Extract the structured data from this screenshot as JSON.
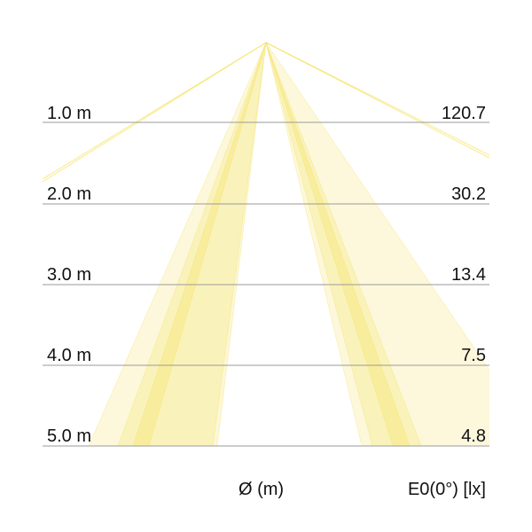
{
  "colors": {
    "beam": "#f5e15a",
    "line": "#9a9a9a"
  },
  "rows": [
    {
      "distance": "1.0 m",
      "lux": "120.7"
    },
    {
      "distance": "2.0 m",
      "lux": "30.2"
    },
    {
      "distance": "3.0 m",
      "lux": "13.4"
    },
    {
      "distance": "4.0 m",
      "lux": "7.5"
    },
    {
      "distance": "5.0 m",
      "lux": "4.8"
    }
  ],
  "footer": {
    "diameter_label": "Ø (m)",
    "illuminance_label": "E0(0°) [lx]"
  }
}
